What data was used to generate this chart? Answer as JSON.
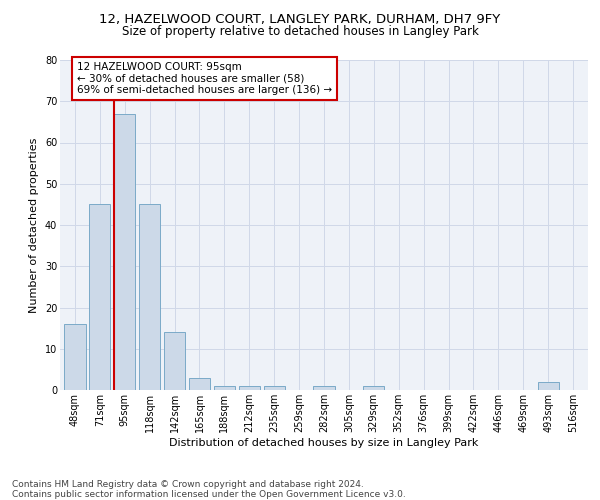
{
  "title1": "12, HAZELWOOD COURT, LANGLEY PARK, DURHAM, DH7 9FY",
  "title2": "Size of property relative to detached houses in Langley Park",
  "xlabel": "Distribution of detached houses by size in Langley Park",
  "ylabel": "Number of detached properties",
  "categories": [
    "48sqm",
    "71sqm",
    "95sqm",
    "118sqm",
    "142sqm",
    "165sqm",
    "188sqm",
    "212sqm",
    "235sqm",
    "259sqm",
    "282sqm",
    "305sqm",
    "329sqm",
    "352sqm",
    "376sqm",
    "399sqm",
    "422sqm",
    "446sqm",
    "469sqm",
    "493sqm",
    "516sqm"
  ],
  "values": [
    16,
    45,
    67,
    45,
    14,
    3,
    1,
    1,
    1,
    0,
    1,
    0,
    1,
    0,
    0,
    0,
    0,
    0,
    0,
    2,
    0
  ],
  "bar_color": "#ccd9e8",
  "bar_edge_color": "#7aaac8",
  "highlight_index": 2,
  "highlight_line_color": "#cc0000",
  "ylim": [
    0,
    80
  ],
  "yticks": [
    0,
    10,
    20,
    30,
    40,
    50,
    60,
    70,
    80
  ],
  "grid_color": "#d0d8e8",
  "bg_color": "#eef2f8",
  "annotation_text": "12 HAZELWOOD COURT: 95sqm\n← 30% of detached houses are smaller (58)\n69% of semi-detached houses are larger (136) →",
  "annotation_box_color": "#ffffff",
  "annotation_box_edge": "#cc0000",
  "footer": "Contains HM Land Registry data © Crown copyright and database right 2024.\nContains public sector information licensed under the Open Government Licence v3.0.",
  "title1_fontsize": 9.5,
  "title2_fontsize": 8.5,
  "xlabel_fontsize": 8,
  "ylabel_fontsize": 8,
  "tick_fontsize": 7,
  "annotation_fontsize": 7.5,
  "footer_fontsize": 6.5
}
